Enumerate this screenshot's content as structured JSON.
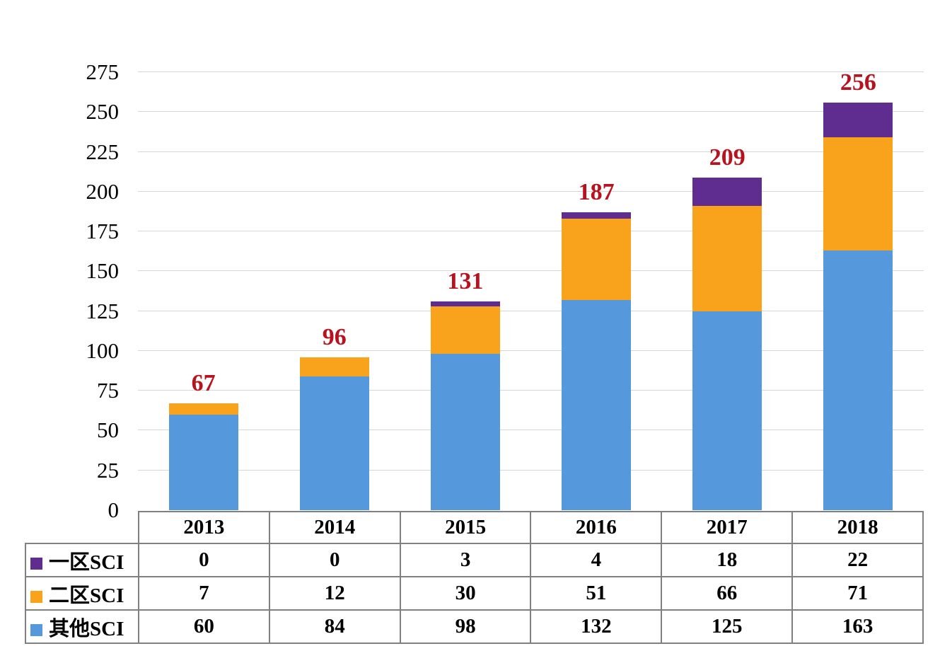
{
  "colors": {
    "total_label": "#B9121F",
    "gridline": "#D6D6D6",
    "table_border": "#808080",
    "text": "#000000",
    "background": "#FFFFFF"
  },
  "chart_data": {
    "type": "bar",
    "stacked": true,
    "title": "",
    "xlabel": "",
    "ylabel": "",
    "grid": true,
    "legend_position": "table-left",
    "categories": [
      "2013",
      "2014",
      "2015",
      "2016",
      "2017",
      "2018"
    ],
    "series": [
      {
        "key": "sci-zone1",
        "name": "一区SCI",
        "color": "#5F2C8F",
        "values": [
          0,
          0,
          3,
          4,
          18,
          22
        ]
      },
      {
        "key": "sci-zone2",
        "name": "二区SCI",
        "color": "#F9A21C",
        "values": [
          7,
          12,
          30,
          51,
          66,
          71
        ]
      },
      {
        "key": "sci-other",
        "name": "其他SCI",
        "color": "#5599DC",
        "values": [
          60,
          84,
          98,
          132,
          125,
          163
        ]
      }
    ],
    "totals": [
      67,
      96,
      131,
      187,
      209,
      256
    ],
    "y_ticks": [
      0,
      25,
      50,
      75,
      100,
      125,
      150,
      175,
      200,
      225,
      250,
      275
    ],
    "ylim": [
      0,
      275
    ]
  }
}
